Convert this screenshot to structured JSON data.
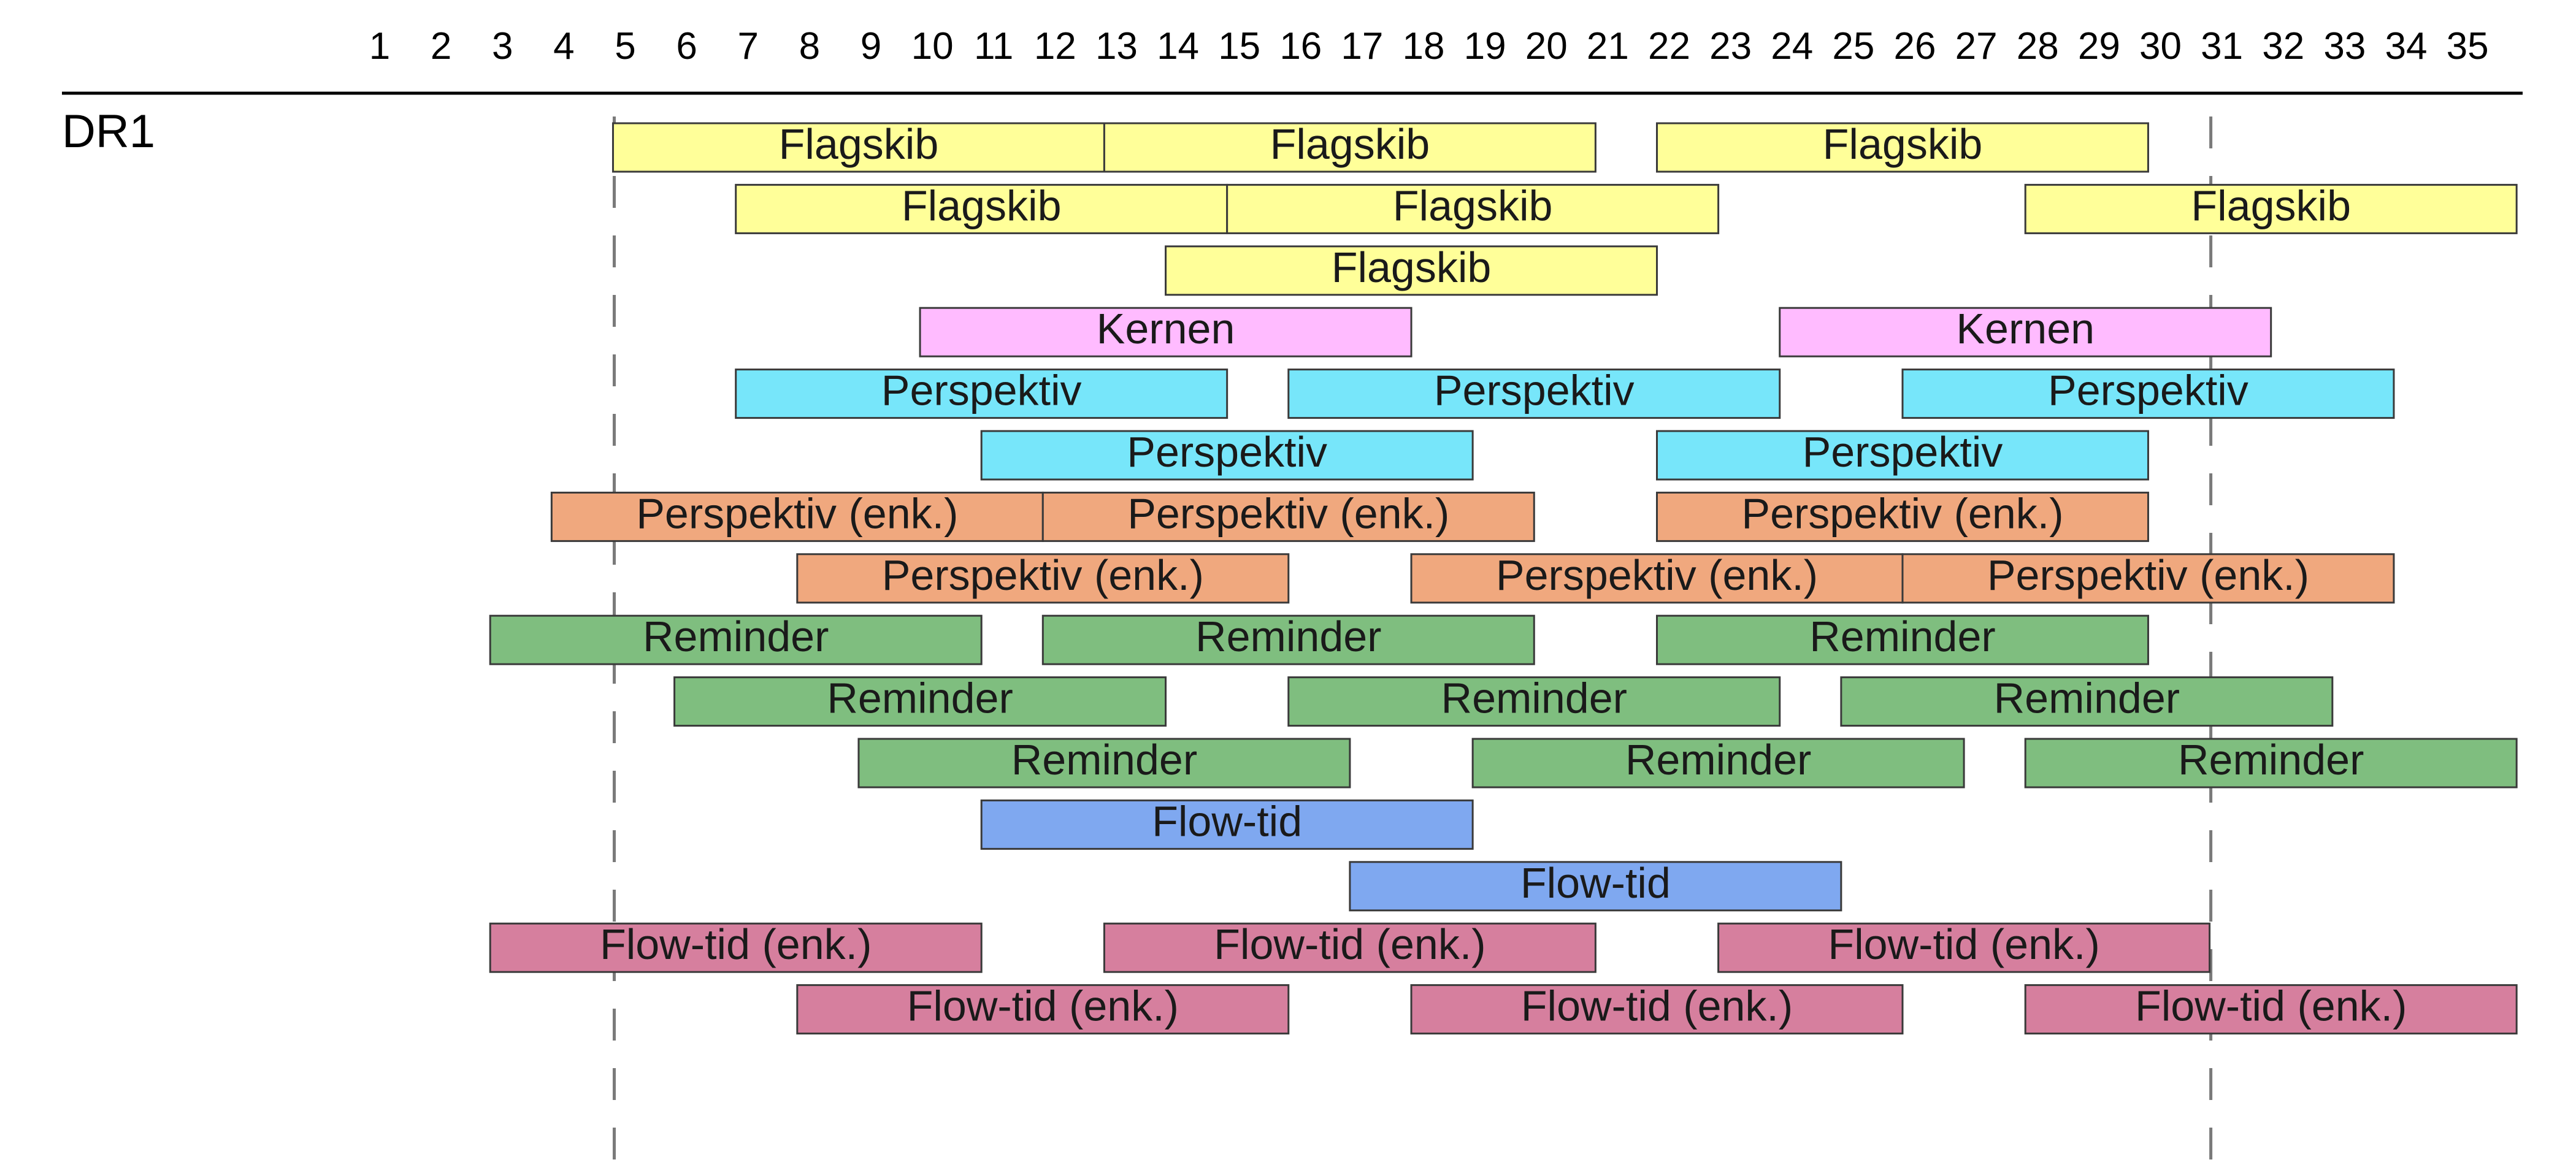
{
  "channel": "DR1",
  "chart_data": {
    "type": "gantt",
    "channel": "DR1",
    "x_ticks": [
      1,
      2,
      3,
      4,
      5,
      6,
      7,
      8,
      9,
      10,
      11,
      12,
      13,
      14,
      15,
      16,
      17,
      18,
      19,
      20,
      21,
      22,
      23,
      24,
      25,
      26,
      27,
      28,
      29,
      30,
      31,
      32,
      33,
      34,
      35
    ],
    "xlim": [
      0.5,
      35.5
    ],
    "reference_lines": [
      5,
      31
    ],
    "colors": {
      "Flagskib": "#ffff99",
      "Kernen": "#ffbbff",
      "Perspektiv": "#77e6fa",
      "Perspektiv (enk.)": "#f0a87e",
      "Reminder": "#7fbe7f",
      "Flow-tid": "#7fa8f0",
      "Flow-tid (enk.)": "#d67f9e"
    },
    "rows": [
      [
        {
          "label": "Flagskib",
          "start": 4.8,
          "end": 12.8
        },
        {
          "label": "Flagskib",
          "start": 12.8,
          "end": 20.8
        },
        {
          "label": "Flagskib",
          "start": 21.8,
          "end": 29.8
        }
      ],
      [
        {
          "label": "Flagskib",
          "start": 6.8,
          "end": 14.8
        },
        {
          "label": "Flagskib",
          "start": 14.8,
          "end": 22.8
        },
        {
          "label": "Flagskib",
          "start": 27.8,
          "end": 35.8
        }
      ],
      [
        {
          "label": "Flagskib",
          "start": 13.8,
          "end": 21.8
        }
      ],
      [
        {
          "label": "Kernen",
          "start": 9.8,
          "end": 17.8
        },
        {
          "label": "Kernen",
          "start": 23.8,
          "end": 31.8
        }
      ],
      [
        {
          "label": "Perspektiv",
          "start": 6.8,
          "end": 14.8
        },
        {
          "label": "Perspektiv",
          "start": 15.8,
          "end": 23.8
        },
        {
          "label": "Perspektiv",
          "start": 25.8,
          "end": 33.8
        }
      ],
      [
        {
          "label": "Perspektiv",
          "start": 10.8,
          "end": 18.8
        },
        {
          "label": "Perspektiv",
          "start": 21.8,
          "end": 29.8
        }
      ],
      [
        {
          "label": "Perspektiv (enk.)",
          "start": 3.8,
          "end": 11.8
        },
        {
          "label": "Perspektiv (enk.)",
          "start": 11.8,
          "end": 19.8
        },
        {
          "label": "Perspektiv (enk.)",
          "start": 21.8,
          "end": 29.8
        }
      ],
      [
        {
          "label": "Perspektiv (enk.)",
          "start": 7.8,
          "end": 15.8
        },
        {
          "label": "Perspektiv (enk.)",
          "start": 17.8,
          "end": 25.8
        },
        {
          "label": "Perspektiv (enk.)",
          "start": 25.8,
          "end": 33.8
        }
      ],
      [
        {
          "label": "Reminder",
          "start": 2.8,
          "end": 10.8
        },
        {
          "label": "Reminder",
          "start": 11.8,
          "end": 19.8
        },
        {
          "label": "Reminder",
          "start": 21.8,
          "end": 29.8
        }
      ],
      [
        {
          "label": "Reminder",
          "start": 5.8,
          "end": 13.8
        },
        {
          "label": "Reminder",
          "start": 15.8,
          "end": 23.8
        },
        {
          "label": "Reminder",
          "start": 24.8,
          "end": 32.8
        }
      ],
      [
        {
          "label": "Reminder",
          "start": 8.8,
          "end": 16.8
        },
        {
          "label": "Reminder",
          "start": 18.8,
          "end": 26.8
        },
        {
          "label": "Reminder",
          "start": 27.8,
          "end": 35.8
        }
      ],
      [
        {
          "label": "Flow-tid",
          "start": 10.8,
          "end": 18.8
        }
      ],
      [
        {
          "label": "Flow-tid",
          "start": 16.8,
          "end": 24.8
        }
      ],
      [
        {
          "label": "Flow-tid (enk.)",
          "start": 2.8,
          "end": 10.8
        },
        {
          "label": "Flow-tid (enk.)",
          "start": 12.8,
          "end": 20.8
        },
        {
          "label": "Flow-tid (enk.)",
          "start": 22.8,
          "end": 30.8
        }
      ],
      [
        {
          "label": "Flow-tid (enk.)",
          "start": 7.8,
          "end": 15.8
        },
        {
          "label": "Flow-tid (enk.)",
          "start": 17.8,
          "end": 25.8
        },
        {
          "label": "Flow-tid (enk.)",
          "start": 27.8,
          "end": 35.8
        }
      ]
    ]
  }
}
